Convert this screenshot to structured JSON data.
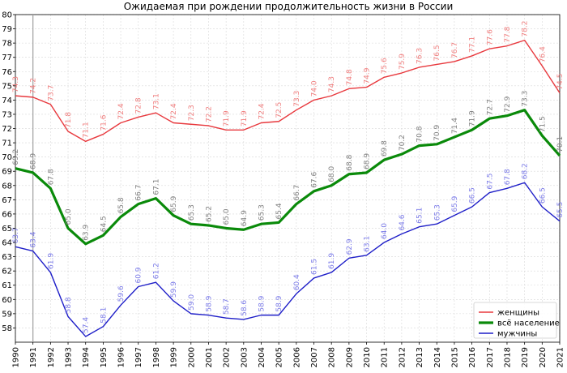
{
  "chart_data": {
    "type": "line",
    "title": "Ожидаемая при рождении продолжительность жизни в России",
    "xlabel": "",
    "ylabel": "",
    "xlim": [
      1990,
      2021
    ],
    "ylim": [
      57,
      80
    ],
    "grid": true,
    "legend_position": "bottom-right",
    "vertical_marker_x": 1991,
    "x": [
      1990,
      1991,
      1992,
      1993,
      1994,
      1995,
      1996,
      1997,
      1998,
      1999,
      2000,
      2001,
      2002,
      2003,
      2004,
      2005,
      2006,
      2007,
      2008,
      2009,
      2010,
      2011,
      2012,
      2013,
      2014,
      2015,
      2016,
      2017,
      2018,
      2019,
      2020,
      2021
    ],
    "x_ticks": [
      "1990",
      "1991",
      "1992",
      "1993",
      "1994",
      "1995",
      "1996",
      "1997",
      "1998",
      "1999",
      "2000",
      "2001",
      "2002",
      "2003",
      "2004",
      "2005",
      "2006",
      "2007",
      "2008",
      "2009",
      "2010",
      "2011",
      "2012",
      "2013",
      "2014",
      "2015",
      "2016",
      "2017",
      "2018",
      "2019",
      "2020",
      "2021"
    ],
    "y_ticks": [
      "58",
      "59",
      "60",
      "61",
      "62",
      "63",
      "64",
      "65",
      "66",
      "67",
      "68",
      "69",
      "70",
      "71",
      "72",
      "73",
      "74",
      "75",
      "76",
      "77",
      "78",
      "79",
      "80"
    ],
    "series": [
      {
        "name": "женщины",
        "color": "#e8383d",
        "label_color": "#f08080",
        "values": [
          74.3,
          74.2,
          73.7,
          71.8,
          71.1,
          71.6,
          72.4,
          72.8,
          73.1,
          72.4,
          72.3,
          72.2,
          71.9,
          71.9,
          72.4,
          72.5,
          73.3,
          74.0,
          74.3,
          74.8,
          74.9,
          75.6,
          75.9,
          76.3,
          76.5,
          76.7,
          77.1,
          77.6,
          77.8,
          78.2,
          76.4,
          74.5
        ],
        "labels": [
          "74.3",
          "74.2",
          "73.7",
          "71.8",
          "71.1",
          "71.6",
          "72.4",
          "72.8",
          "73.1",
          "72.4",
          "72.3",
          "72.2",
          "71.9",
          "71.9",
          "72.4",
          "72.5",
          "73.3",
          "74.0",
          "74.3",
          "74.8",
          "74.9",
          "75.6",
          "75.9",
          "76.3",
          "76.5",
          "76.7",
          "77.1",
          "77.6",
          "77.8",
          "78.2",
          "76.4",
          "74.5"
        ]
      },
      {
        "name": "всё население",
        "color": "#0a8a0a",
        "label_color": "#808080",
        "values": [
          69.2,
          68.9,
          67.8,
          65.0,
          63.9,
          64.5,
          65.8,
          66.7,
          67.1,
          65.9,
          65.3,
          65.2,
          65.0,
          64.9,
          65.3,
          65.4,
          66.7,
          67.6,
          68.0,
          68.8,
          68.9,
          69.8,
          70.2,
          70.8,
          70.9,
          71.4,
          71.9,
          72.7,
          72.9,
          73.3,
          71.5,
          70.1
        ],
        "labels": [
          "69.2",
          "68.9",
          "67.8",
          "65.0",
          "63.9",
          "64.5",
          "65.8",
          "66.7",
          "67.1",
          "65.9",
          "65.3",
          "65.2",
          "65.0",
          "64.9",
          "65.3",
          "65.4",
          "66.7",
          "67.6",
          "68.0",
          "68.8",
          "68.9",
          "69.8",
          "70.2",
          "70.8",
          "70.9",
          "71.4",
          "71.9",
          "72.7",
          "72.9",
          "73.3",
          "71.5",
          "70.1"
        ]
      },
      {
        "name": "мужчины",
        "color": "#1e1ec8",
        "label_color": "#7b7be8",
        "values": [
          63.7,
          63.4,
          61.9,
          58.8,
          57.4,
          58.1,
          59.6,
          60.9,
          61.2,
          59.9,
          59.0,
          58.9,
          58.7,
          58.6,
          58.9,
          58.9,
          60.4,
          61.5,
          61.9,
          62.9,
          63.1,
          64.0,
          64.6,
          65.1,
          65.3,
          65.9,
          66.5,
          67.5,
          67.8,
          68.2,
          66.5,
          65.5
        ],
        "labels": [
          "63.7",
          "63.4",
          "61.9",
          "58.8",
          "57.4",
          "58.1",
          "59.6",
          "60.9",
          "61.2",
          "59.9",
          "59.0",
          "58.9",
          "58.7",
          "58.6",
          "58.9",
          "58.9",
          "60.4",
          "61.5",
          "61.9",
          "62.9",
          "63.1",
          "64.0",
          "64.6",
          "65.1",
          "65.3",
          "65.9",
          "66.5",
          "67.5",
          "67.8",
          "68.2",
          "66.5",
          "65.5"
        ]
      }
    ]
  }
}
